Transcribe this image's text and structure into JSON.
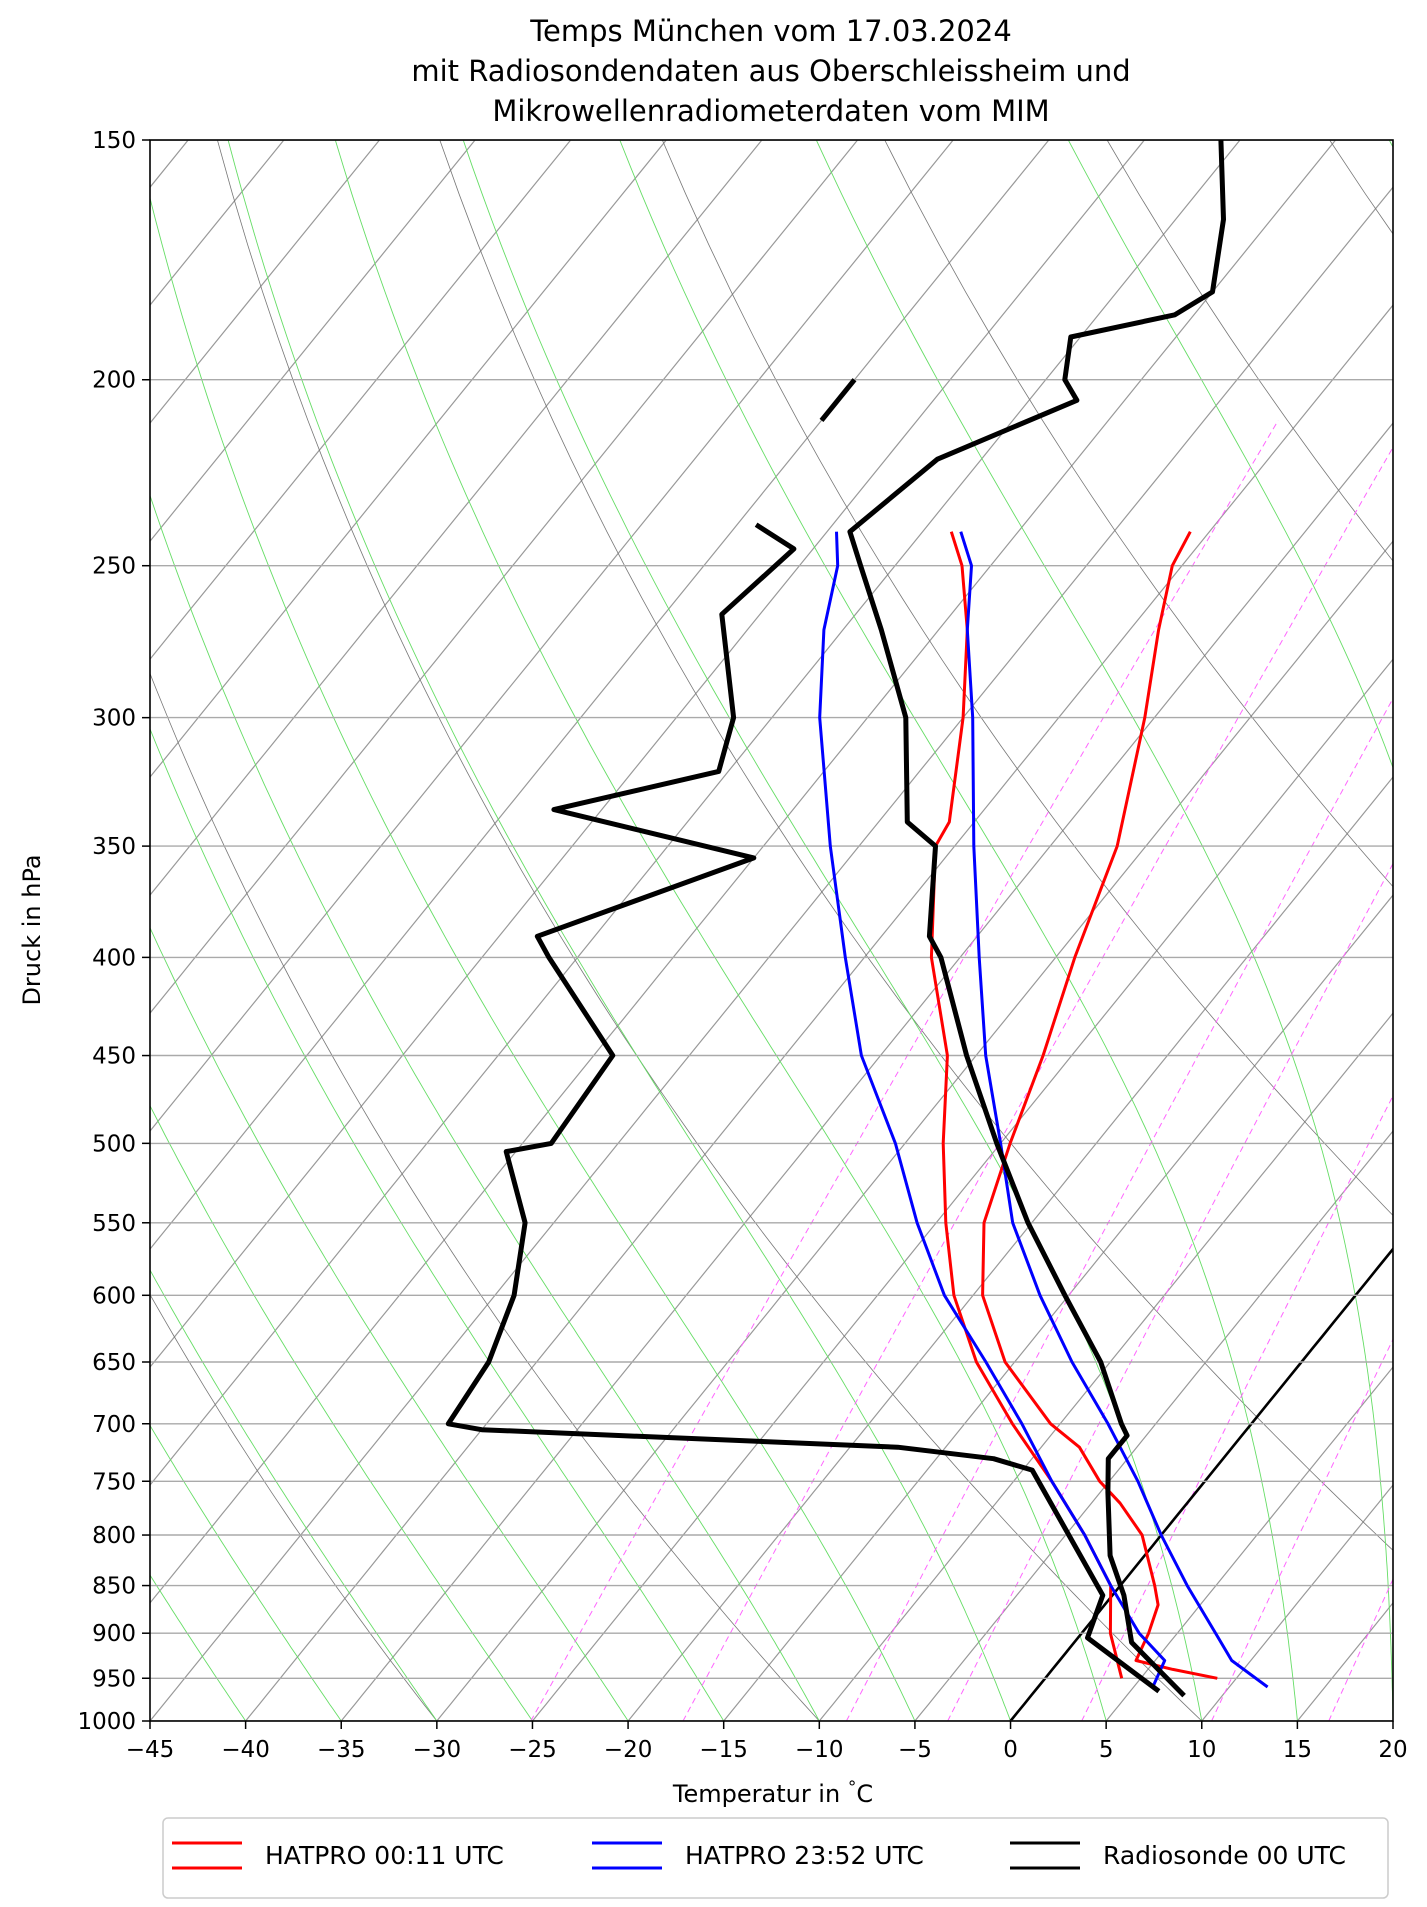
{
  "chart_data": {
    "type": "line",
    "diagram": "Skew-T log-P",
    "title_lines": [
      "Temps München vom 17.03.2024",
      "mit Radiosondendaten aus Oberschleissheim und",
      "Mikrowellenradiometerdaten vom MIM"
    ],
    "xlabel": "Temperatur in $^\\circ$C",
    "xlabel_text": "Temperatur in",
    "xlabel_unit": "C",
    "xlabel_degree": "°",
    "ylabel": "Druck in hPa",
    "xlim": [
      -45,
      20
    ],
    "ylim": [
      1000,
      150
    ],
    "y_scale": "log",
    "x_ticks": [
      "−45",
      "−40",
      "−35",
      "−30",
      "−25",
      "−20",
      "−15",
      "−10",
      "−5",
      "0",
      "5",
      "10",
      "15",
      "20"
    ],
    "x_tick_values": [
      -45,
      -40,
      -35,
      -30,
      -25,
      -20,
      -15,
      -10,
      -5,
      0,
      5,
      10,
      15,
      20
    ],
    "y_ticks": [
      "150",
      "200",
      "250",
      "300",
      "350",
      "400",
      "450",
      "500",
      "550",
      "600",
      "650",
      "700",
      "750",
      "800",
      "850",
      "900",
      "950",
      "1000"
    ],
    "y_tick_values": [
      150,
      200,
      250,
      300,
      350,
      400,
      450,
      500,
      550,
      600,
      650,
      700,
      750,
      800,
      850,
      900,
      950,
      1000
    ],
    "grid": true,
    "background_lines": {
      "isotherms_skewed": "gray",
      "dry_adiabats": "gray",
      "moist_adiabats": "light-green",
      "mixing_ratio_lines": "magenta-dashed",
      "zero_celsius_line": "black"
    },
    "legend": {
      "placement": "bottom-center-outside",
      "entries": [
        {
          "label": "HATPRO 00:11 UTC",
          "color": "#ff0000"
        },
        {
          "label": "HATPRO 23:52 UTC",
          "color": "#0000ff"
        },
        {
          "label": "Radiosonde 00 UTC",
          "color": "#000000"
        }
      ]
    },
    "series": [
      {
        "name": "HATPRO 00:11 UTC",
        "color": "#ff0000",
        "temperature": [
          [
            950,
            9.0
          ],
          [
            940,
            6.3
          ],
          [
            930,
            4.0
          ],
          [
            900,
            3.5
          ],
          [
            870,
            2.8
          ],
          [
            850,
            1.8
          ],
          [
            800,
            -1.0
          ],
          [
            770,
            -3.5
          ],
          [
            750,
            -5.5
          ],
          [
            720,
            -8.0
          ],
          [
            700,
            -10.5
          ],
          [
            650,
            -15.5
          ],
          [
            600,
            -19.5
          ],
          [
            550,
            -22.5
          ],
          [
            500,
            -24.5
          ],
          [
            450,
            -26.5
          ],
          [
            400,
            -29.0
          ],
          [
            350,
            -31.5
          ],
          [
            300,
            -35.5
          ],
          [
            270,
            -38.5
          ],
          [
            250,
            -40.5
          ],
          [
            240,
            -41.0
          ]
        ],
        "dewpoint": [
          [
            950,
            4.0
          ],
          [
            900,
            1.5
          ],
          [
            850,
            -0.5
          ],
          [
            800,
            -4.0
          ],
          [
            750,
            -8.0
          ],
          [
            700,
            -12.5
          ],
          [
            650,
            -17.0
          ],
          [
            600,
            -21.0
          ],
          [
            550,
            -24.5
          ],
          [
            500,
            -28.0
          ],
          [
            450,
            -31.5
          ],
          [
            400,
            -36.5
          ],
          [
            350,
            -41.0
          ],
          [
            340,
            -41.3
          ],
          [
            300,
            -45.0
          ],
          [
            270,
            -48.5
          ],
          [
            250,
            -51.5
          ],
          [
            240,
            -53.5
          ]
        ]
      },
      {
        "name": "HATPRO 23:52 UTC",
        "color": "#0000ff",
        "temperature": [
          [
            960,
            12.0
          ],
          [
            930,
            9.0
          ],
          [
            900,
            7.0
          ],
          [
            850,
            3.5
          ],
          [
            800,
            0.0
          ],
          [
            750,
            -3.5
          ],
          [
            700,
            -7.5
          ],
          [
            650,
            -12.0
          ],
          [
            600,
            -16.5
          ],
          [
            550,
            -21.0
          ],
          [
            500,
            -25.0
          ],
          [
            450,
            -29.5
          ],
          [
            400,
            -34.0
          ],
          [
            350,
            -39.0
          ],
          [
            300,
            -44.5
          ],
          [
            270,
            -48.5
          ],
          [
            250,
            -51.0
          ],
          [
            240,
            -53.0
          ]
        ],
        "dewpoint": [
          [
            960,
            6.0
          ],
          [
            930,
            5.5
          ],
          [
            900,
            3.0
          ],
          [
            850,
            -0.5
          ],
          [
            800,
            -4.0
          ],
          [
            750,
            -8.0
          ],
          [
            700,
            -12.0
          ],
          [
            650,
            -16.5
          ],
          [
            600,
            -21.5
          ],
          [
            550,
            -26.0
          ],
          [
            500,
            -30.5
          ],
          [
            450,
            -36.0
          ],
          [
            400,
            -41.0
          ],
          [
            350,
            -46.5
          ],
          [
            300,
            -52.5
          ],
          [
            270,
            -56.0
          ],
          [
            250,
            -58.0
          ],
          [
            240,
            -59.5
          ]
        ]
      },
      {
        "name": "Radiosonde 00 UTC",
        "color": "#000000",
        "temperature": [
          [
            970,
            8.0
          ],
          [
            910,
            3.0
          ],
          [
            860,
            0.6
          ],
          [
            820,
            -1.8
          ],
          [
            760,
            -4.6
          ],
          [
            730,
            -6.0
          ],
          [
            710,
            -6.0
          ],
          [
            700,
            -6.8
          ],
          [
            650,
            -10.5
          ],
          [
            600,
            -15.2
          ],
          [
            550,
            -20.2
          ],
          [
            500,
            -25.2
          ],
          [
            450,
            -30.5
          ],
          [
            400,
            -36.0
          ],
          [
            390,
            -37.5
          ],
          [
            350,
            -41.0
          ],
          [
            340,
            -43.5
          ],
          [
            300,
            -48.0
          ],
          [
            270,
            -53.0
          ],
          [
            250,
            -56.8
          ],
          [
            240,
            -58.8
          ],
          [
            220,
            -57.3
          ],
          [
            205,
            -52.5
          ],
          [
            200,
            -54.0
          ],
          [
            190,
            -55.5
          ],
          [
            185,
            -51.0
          ],
          [
            180,
            -50.0
          ],
          [
            165,
            -52.5
          ],
          [
            150,
            -56.0
          ]
        ],
        "dewpoint": [
          [
            965,
            6.5
          ],
          [
            905,
            0.5
          ],
          [
            860,
            -0.5
          ],
          [
            740,
            -9.5
          ],
          [
            730,
            -12.0
          ],
          [
            720,
            -17.5
          ],
          [
            705,
            -40.0
          ],
          [
            700,
            -42.0
          ],
          [
            650,
            -42.5
          ],
          [
            600,
            -44.0
          ],
          [
            550,
            -46.5
          ],
          [
            505,
            -50.5
          ],
          [
            500,
            -48.5
          ],
          [
            450,
            -49.0
          ],
          [
            400,
            -56.5
          ],
          [
            390,
            -58.0
          ],
          [
            355,
            -50.0
          ],
          [
            335,
            -62.5
          ],
          [
            320,
            -55.5
          ],
          [
            300,
            -57.0
          ],
          [
            265,
            -62.0
          ],
          [
            245,
            -61.0
          ],
          [
            238,
            -64.0
          ]
        ],
        "extra_segment": [
          [
            210,
            -65.0
          ],
          [
            200,
            -65.0
          ]
        ]
      }
    ]
  }
}
